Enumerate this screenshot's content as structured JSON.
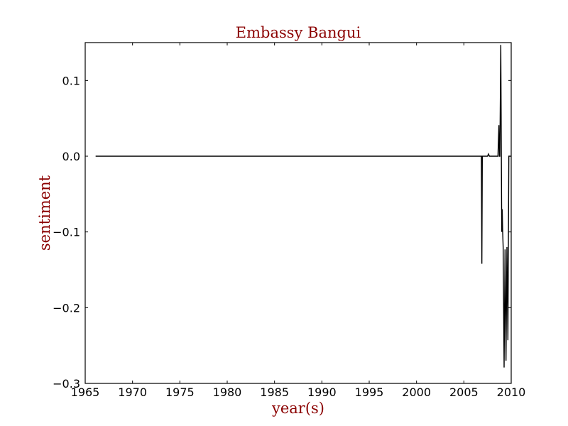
{
  "chart_data": {
    "type": "line",
    "title": "Embassy Bangui",
    "xlabel": "year(s)",
    "ylabel": "sentiment",
    "xlim": [
      1965,
      2010
    ],
    "ylim": [
      -0.3,
      0.15
    ],
    "xticks": [
      1965,
      1970,
      1975,
      1980,
      1985,
      1990,
      1995,
      2000,
      2005,
      2010
    ],
    "xtick_labels": [
      "1965",
      "1970",
      "1975",
      "1980",
      "1985",
      "1990",
      "1995",
      "2000",
      "2005",
      "2010"
    ],
    "yticks": [
      0.1,
      0.0,
      -0.1,
      -0.2,
      -0.3
    ],
    "ytick_labels": [
      "0.1",
      "0.0",
      "−0.1",
      "−0.2",
      "−0.3"
    ],
    "grid": false,
    "series": [
      {
        "color": "#000000",
        "x": [
          1966.1,
          2006.65,
          2006.85,
          2006.9,
          2006.95,
          2007.3,
          2007.5,
          2007.6,
          2007.7,
          2008.5,
          2008.6,
          2008.7,
          2008.75,
          2008.8,
          2008.9,
          2009.0,
          2009.05,
          2009.1,
          2009.15,
          2009.25,
          2009.35,
          2009.45,
          2009.55,
          2009.65,
          2009.75,
          2009.85,
          2009.95
        ],
        "y": [
          0.0,
          0.0,
          0.0,
          -0.142,
          0.0,
          0.0,
          0.0,
          0.003,
          0.0,
          0.0,
          0.0,
          0.041,
          0.0,
          0.0,
          0.147,
          -0.1,
          -0.07,
          -0.1,
          -0.12,
          -0.279,
          -0.123,
          -0.27,
          -0.12,
          -0.243,
          0.0,
          0.0,
          0.0
        ]
      }
    ]
  }
}
